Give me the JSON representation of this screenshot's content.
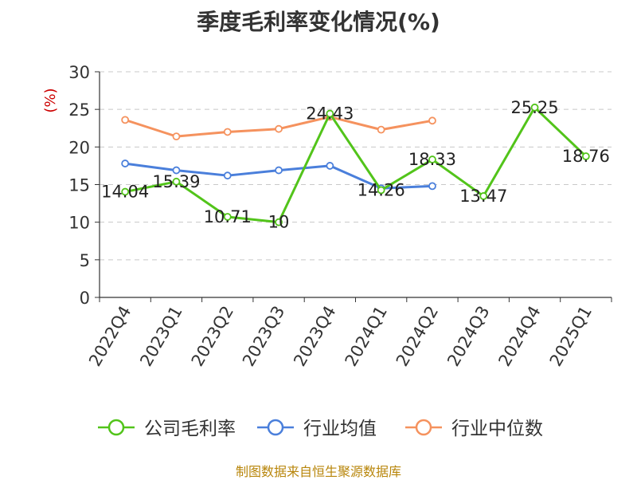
{
  "chart_data": {
    "type": "line",
    "title": "季度毛利率变化情况(%)",
    "ylabel": "(%)",
    "categories": [
      "2022Q4",
      "2023Q1",
      "2023Q2",
      "2023Q3",
      "2023Q4",
      "2024Q1",
      "2024Q2",
      "2024Q3",
      "2024Q4",
      "2025Q1"
    ],
    "ylim": [
      0,
      30
    ],
    "yticks": [
      0,
      5,
      10,
      15,
      20,
      25,
      30
    ],
    "grid": true,
    "legend_position": "bottom",
    "series": [
      {
        "name": "公司毛利率",
        "color": "#52c41a",
        "values": [
          14.04,
          15.39,
          10.71,
          10,
          24.43,
          14.26,
          18.33,
          13.47,
          25.25,
          18.76
        ],
        "labels": [
          "14.04",
          "15.39",
          "10.71",
          "10",
          "24.43",
          "14.26",
          "18.33",
          "13.47",
          "25.25",
          "18.76"
        ]
      },
      {
        "name": "行业均值",
        "color": "#4a7fdb",
        "values": [
          17.8,
          16.9,
          16.2,
          16.9,
          17.5,
          14.5,
          14.8,
          null,
          null,
          null
        ]
      },
      {
        "name": "行业中位数",
        "color": "#f5925e",
        "values": [
          23.6,
          21.4,
          22.0,
          22.4,
          24.0,
          22.3,
          23.5,
          null,
          null,
          null
        ]
      }
    ]
  },
  "source": "制图数据来自恒生聚源数据库"
}
